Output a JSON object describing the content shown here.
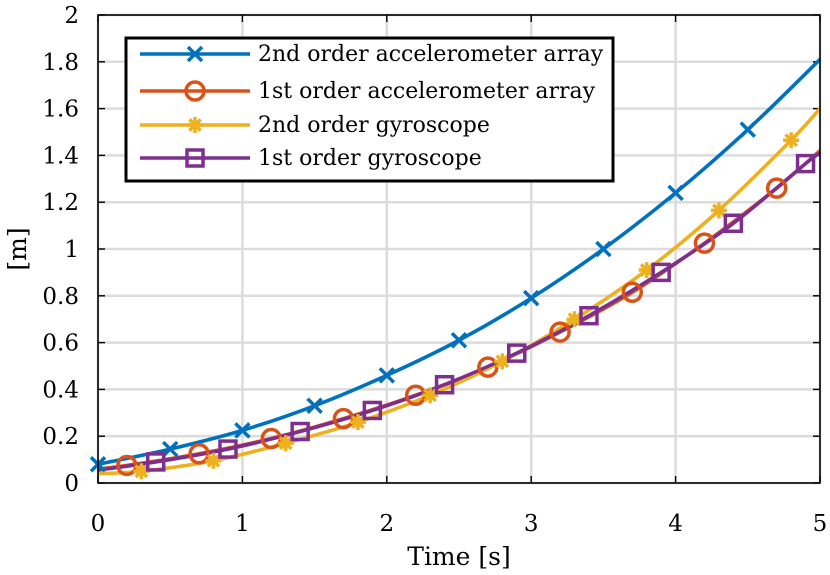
{
  "chart_data": {
    "type": "line",
    "xlabel": "Time [s]",
    "ylabel": "[m]",
    "xlim": [
      0,
      5
    ],
    "ylim": [
      0,
      2
    ],
    "xticks": [
      "0",
      "1",
      "2",
      "3",
      "4",
      "5"
    ],
    "yticks": [
      "0",
      "0.2",
      "0.4",
      "0.6",
      "0.8",
      "1",
      "1.2",
      "1.4",
      "1.6",
      "1.8",
      "2"
    ],
    "grid": true,
    "legend_position": "top-left",
    "series": [
      {
        "name": "2nd order accelerometer array",
        "color": "#0072BD",
        "marker": "x",
        "x": [
          0,
          0.5,
          1,
          1.5,
          2,
          2.5,
          3,
          3.5,
          4,
          4.5,
          5
        ],
        "y": [
          0.08,
          0.145,
          0.225,
          0.33,
          0.46,
          0.61,
          0.79,
          1.0,
          1.24,
          1.51,
          1.81
        ],
        "marker_x": [
          0,
          0.5,
          1,
          1.5,
          2,
          2.5,
          3,
          3.5,
          4,
          4.5
        ]
      },
      {
        "name": "1st order accelerometer array",
        "color": "#D95319",
        "marker": "o",
        "x": [
          0,
          0.2,
          0.7,
          1.2,
          1.7,
          2.2,
          2.7,
          3.2,
          3.7,
          4.2,
          4.7,
          5
        ],
        "y": [
          0.06,
          0.075,
          0.125,
          0.19,
          0.275,
          0.375,
          0.495,
          0.645,
          0.815,
          1.025,
          1.26,
          1.42
        ],
        "marker_x": [
          0.2,
          0.7,
          1.2,
          1.7,
          2.2,
          2.7,
          3.2,
          3.7,
          4.2,
          4.7
        ]
      },
      {
        "name": "2nd order gyroscope",
        "color": "#EDB120",
        "marker": "*",
        "x": [
          0,
          0.3,
          0.8,
          1.3,
          1.8,
          2.3,
          2.8,
          3.3,
          3.8,
          4.3,
          4.8,
          5
        ],
        "y": [
          0.04,
          0.05,
          0.095,
          0.17,
          0.26,
          0.375,
          0.52,
          0.7,
          0.91,
          1.165,
          1.465,
          1.6
        ],
        "marker_x": [
          0.3,
          0.8,
          1.3,
          1.8,
          2.3,
          2.8,
          3.3,
          3.8,
          4.3,
          4.8
        ]
      },
      {
        "name": "1st order gyroscope",
        "color": "#7E2F8E",
        "marker": "s",
        "x": [
          0,
          0.4,
          0.9,
          1.4,
          1.9,
          2.4,
          2.9,
          3.4,
          3.9,
          4.4,
          4.9,
          5
        ],
        "y": [
          0.055,
          0.09,
          0.145,
          0.22,
          0.31,
          0.42,
          0.555,
          0.715,
          0.9,
          1.11,
          1.365,
          1.41
        ],
        "marker_x": [
          0.4,
          0.9,
          1.4,
          1.9,
          2.4,
          2.9,
          3.4,
          3.9,
          4.4,
          4.9
        ]
      }
    ]
  }
}
